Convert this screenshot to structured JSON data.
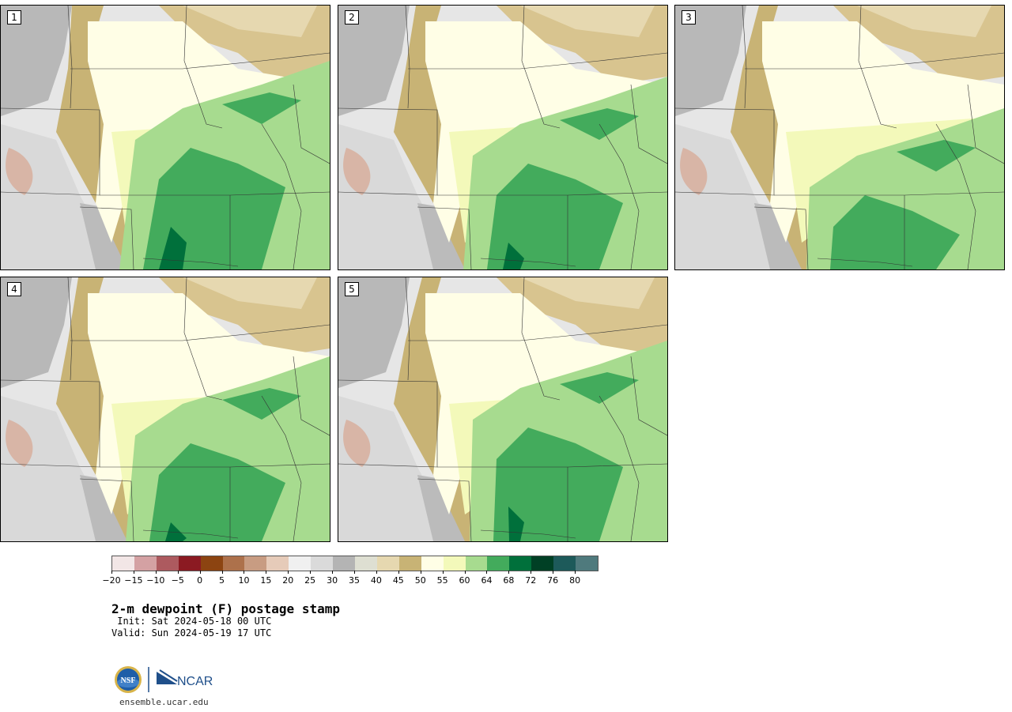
{
  "title": "2-m dewpoint (F) postage stamp",
  "init": " Init: Sat 2024-05-18 00 UTC",
  "valid": "Valid: Sun 2024-05-19 17 UTC",
  "website": "ensemble.ucar.edu",
  "logos": {
    "nsf": "NSF",
    "ncar": "NCAR"
  },
  "panels": [
    {
      "label": "1",
      "shift": 0,
      "moist": 1.0
    },
    {
      "label": "2",
      "shift": 1,
      "moist": 0.9
    },
    {
      "label": "3",
      "shift": 2,
      "moist": 0.7
    },
    {
      "label": "4",
      "shift": 1,
      "moist": 0.85
    },
    {
      "label": "5",
      "shift": 2,
      "moist": 0.95
    }
  ],
  "colorbar": {
    "colors": [
      "#f2e6e6",
      "#d4a1a3",
      "#ad5a5f",
      "#8b1a22",
      "#8c4411",
      "#ad714b",
      "#c89c82",
      "#e6cbb9",
      "#f0f0f0",
      "#dadada",
      "#b4b4b4",
      "#dedfd2",
      "#e6d8b0",
      "#c8b375",
      "#fffee6",
      "#f3f9ba",
      "#a7db8f",
      "#43ab5c",
      "#00703b",
      "#004025",
      "#1d5a5a",
      "#4f7a7d"
    ],
    "labels": [
      "−20",
      "−15",
      "−10",
      "−5",
      "0",
      "5",
      "10",
      "15",
      "20",
      "25",
      "30",
      "35",
      "40",
      "45",
      "50",
      "55",
      "60",
      "64",
      "68",
      "72",
      "76",
      "80"
    ]
  }
}
